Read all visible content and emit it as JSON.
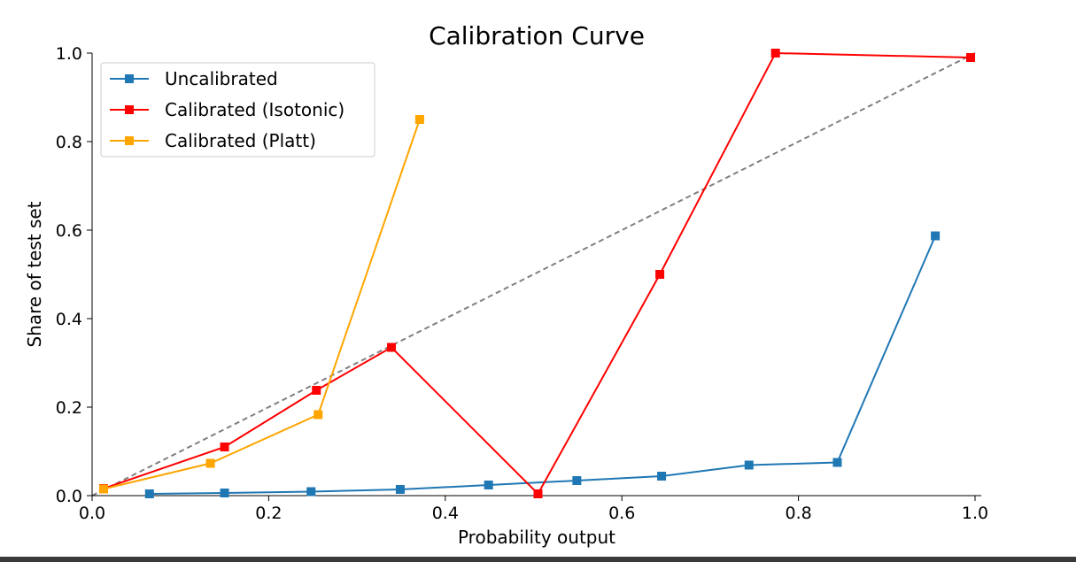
{
  "chart_data": {
    "type": "line",
    "title": "Calibration Curve",
    "xlabel": "Probability output",
    "ylabel": "Share of test set",
    "xlim": [
      0.0,
      1.0
    ],
    "ylim": [
      0.0,
      1.0
    ],
    "xticks": [
      "0.0",
      "0.2",
      "0.4",
      "0.6",
      "0.8",
      "1.0"
    ],
    "yticks": [
      "0.0",
      "0.2",
      "0.4",
      "0.6",
      "0.8",
      "1.0"
    ],
    "grid": false,
    "legend_position": "upper-left",
    "reference_line": {
      "x": [
        0.0,
        1.0
      ],
      "y": [
        0.0,
        1.0
      ],
      "style": "dashed",
      "color": "#808080"
    },
    "series": [
      {
        "name": "Uncalibrated",
        "color": "#1f77b4",
        "marker": "square",
        "x": [
          0.065,
          0.15,
          0.248,
          0.349,
          0.449,
          0.549,
          0.645,
          0.744,
          0.844,
          0.955
        ],
        "y": [
          0.004,
          0.006,
          0.009,
          0.014,
          0.024,
          0.034,
          0.044,
          0.069,
          0.075,
          0.587
        ]
      },
      {
        "name": "Calibrated (Isotonic)",
        "color": "#ff0000",
        "marker": "square",
        "x": [
          0.013,
          0.15,
          0.254,
          0.339,
          0.505,
          0.643,
          0.774,
          0.995
        ],
        "y": [
          0.016,
          0.11,
          0.238,
          0.335,
          0.004,
          0.5,
          1.0,
          0.99
        ]
      },
      {
        "name": "Calibrated (Platt)",
        "color": "#ffa500",
        "marker": "square",
        "x": [
          0.013,
          0.134,
          0.256,
          0.371
        ],
        "y": [
          0.015,
          0.073,
          0.183,
          0.85
        ]
      }
    ]
  }
}
